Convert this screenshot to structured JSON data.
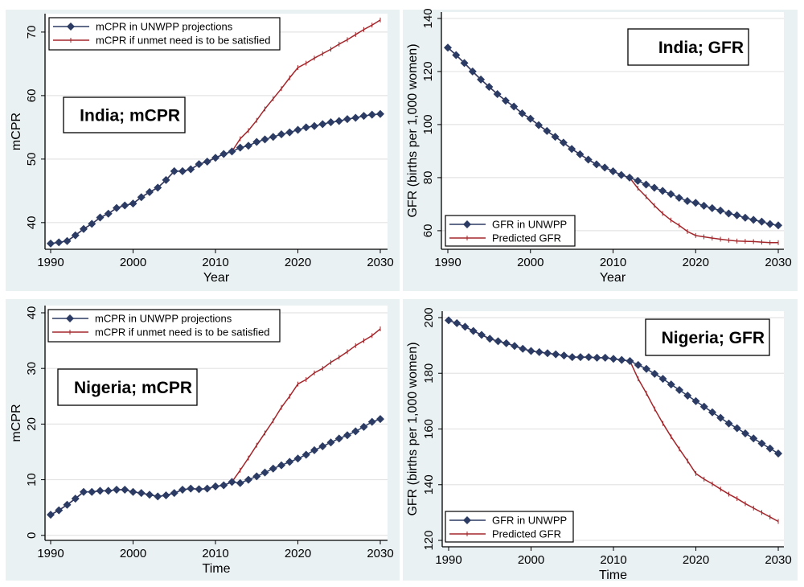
{
  "colors": {
    "panel_bg": "#e9f1f3",
    "series_unwpp": "#2b3b63",
    "series_predicted": "#a3262b",
    "grid": "#e4e4e4"
  },
  "chart_data": [
    {
      "type": "line",
      "title": "India; mCPR",
      "xlabel": "Year",
      "ylabel": "mCPR",
      "xlim": [
        1990,
        2030
      ],
      "ylim": [
        35.8,
        72.9
      ],
      "xticks": [
        "1990",
        "2000",
        "2010",
        "2020",
        "2030"
      ],
      "yticks": [
        "40",
        "50",
        "60",
        "70"
      ],
      "grid": true,
      "legend": "top-left",
      "x_start": 1990,
      "series": [
        {
          "name": "mCPR in UNWPP projections",
          "marker": "diamond",
          "values": [
            36.7,
            36.9,
            37.1,
            38.0,
            39.0,
            39.8,
            40.8,
            41.4,
            42.3,
            42.7,
            43.0,
            44.0,
            44.8,
            45.5,
            46.7,
            48.1,
            48.1,
            48.4,
            49.2,
            49.6,
            50.2,
            50.8,
            51.2,
            51.8,
            52.1,
            52.7,
            53.1,
            53.5,
            53.9,
            54.2,
            54.6,
            55.0,
            55.2,
            55.5,
            55.8,
            56.0,
            56.3,
            56.5,
            56.8,
            57.0,
            57.1
          ]
        },
        {
          "name": "mCPR if unmet need is to be satisfied",
          "marker": "plus",
          "values": [
            36.7,
            36.9,
            37.1,
            38.0,
            39.0,
            39.8,
            40.8,
            41.4,
            42.3,
            42.7,
            43.0,
            44.0,
            44.8,
            45.5,
            46.7,
            48.1,
            48.1,
            48.4,
            49.2,
            49.6,
            50.2,
            50.8,
            51.2,
            53.2,
            54.5,
            56.1,
            57.9,
            59.5,
            61.1,
            62.8,
            64.4,
            65.1,
            65.9,
            66.6,
            67.3,
            68.1,
            68.8,
            69.6,
            70.4,
            71.1,
            71.9
          ]
        }
      ]
    },
    {
      "type": "line",
      "title": "India; GFR",
      "xlabel": "Year",
      "ylabel": "GFR (births per 1,000 women)",
      "xlim": [
        1990,
        2030
      ],
      "ylim": [
        53,
        142.4
      ],
      "xticks": [
        "1990",
        "2000",
        "2010",
        "2020",
        "2030"
      ],
      "yticks": [
        "60",
        "80",
        "100",
        "120",
        "140"
      ],
      "grid": true,
      "legend": "bottom-left",
      "x_start": 1990,
      "series": [
        {
          "name": "GFR in UNWPP",
          "marker": "diamond",
          "values": [
            129.0,
            126.2,
            123.2,
            120.0,
            117.0,
            114.2,
            111.5,
            109.0,
            106.8,
            104.2,
            102.2,
            99.8,
            97.6,
            95.4,
            93.2,
            90.8,
            88.8,
            86.8,
            85.0,
            83.8,
            82.4,
            81.0,
            80.0,
            78.8,
            77.4,
            76.2,
            75.0,
            73.8,
            72.4,
            71.2,
            70.5,
            69.4,
            68.5,
            67.6,
            66.5,
            65.8,
            64.9,
            64.1,
            63.4,
            62.5,
            62.0
          ]
        },
        {
          "name": "Predicted GFR",
          "marker": "plus",
          "values": [
            129.0,
            126.2,
            123.2,
            120.0,
            117.0,
            114.2,
            111.5,
            109.0,
            106.8,
            104.2,
            102.2,
            99.8,
            97.6,
            95.4,
            93.2,
            90.8,
            88.8,
            86.8,
            85.0,
            83.8,
            82.4,
            81.0,
            80.0,
            76.0,
            72.8,
            69.5,
            66.5,
            64.0,
            62.0,
            59.7,
            58.2,
            57.7,
            57.2,
            56.8,
            56.4,
            56.1,
            56.0,
            55.9,
            55.7,
            55.5,
            55.5
          ]
        }
      ]
    },
    {
      "type": "line",
      "title": "Nigeria; mCPR",
      "xlabel": "Time",
      "ylabel": "mCPR",
      "xlim": [
        1990,
        2030
      ],
      "ylim": [
        -0.9,
        41.3
      ],
      "xticks": [
        "1990",
        "2000",
        "2010",
        "2020",
        "2030"
      ],
      "yticks": [
        "0",
        "10",
        "20",
        "30",
        "40"
      ],
      "grid": true,
      "legend": "top-left",
      "x_start": 1990,
      "series": [
        {
          "name": "mCPR in UNWPP projections",
          "marker": "diamond",
          "values": [
            3.7,
            4.5,
            5.5,
            6.6,
            7.8,
            7.8,
            8.0,
            8.0,
            8.2,
            8.2,
            7.8,
            7.6,
            7.3,
            7.0,
            7.2,
            7.6,
            8.2,
            8.4,
            8.3,
            8.4,
            8.8,
            9.0,
            9.6,
            9.4,
            10.0,
            10.6,
            11.3,
            12.0,
            12.6,
            13.2,
            13.8,
            14.5,
            15.3,
            16.0,
            16.7,
            17.4,
            18.0,
            18.7,
            19.5,
            20.4,
            20.9
          ]
        },
        {
          "name": "mCPR if unmet need is to be satisfied",
          "marker": "plus",
          "values": [
            3.7,
            4.5,
            5.5,
            6.6,
            7.8,
            7.8,
            8.0,
            8.0,
            8.2,
            8.2,
            7.8,
            7.6,
            7.3,
            7.0,
            7.2,
            7.6,
            8.2,
            8.4,
            8.3,
            8.4,
            8.8,
            9.0,
            9.6,
            11.7,
            13.9,
            16.2,
            18.4,
            20.6,
            23.0,
            25.0,
            27.2,
            28.0,
            29.2,
            30.0,
            31.1,
            32.0,
            33.0,
            34.1,
            35.0,
            35.9,
            37.1
          ]
        }
      ]
    },
    {
      "type": "line",
      "title": "Nigeria; GFR",
      "xlabel": "Time",
      "ylabel": "GFR (births per 1,000 women)",
      "xlim": [
        1990,
        2030
      ],
      "ylim": [
        117.7,
        202.3
      ],
      "xticks": [
        "1990",
        "2000",
        "2010",
        "2020",
        "2030"
      ],
      "yticks": [
        "120",
        "140",
        "160",
        "180",
        "200"
      ],
      "grid": true,
      "legend": "bottom-left",
      "x_start": 1990,
      "series": [
        {
          "name": "GFR in UNWPP",
          "marker": "diamond",
          "values": [
            199.0,
            198.0,
            196.7,
            195.2,
            193.8,
            192.4,
            191.5,
            190.8,
            189.8,
            188.8,
            188.0,
            187.6,
            187.2,
            186.8,
            186.4,
            185.8,
            185.8,
            185.8,
            185.6,
            185.6,
            185.2,
            184.8,
            184.4,
            183.0,
            181.6,
            179.8,
            178.0,
            176.0,
            174.0,
            172.0,
            170.0,
            168.0,
            166.0,
            164.0,
            162.0,
            160.3,
            158.4,
            156.6,
            154.8,
            153.0,
            151.2
          ]
        },
        {
          "name": "Predicted GFR",
          "marker": "plus",
          "values": [
            199.0,
            198.0,
            196.7,
            195.2,
            193.8,
            192.4,
            191.5,
            190.8,
            189.8,
            188.8,
            188.0,
            187.6,
            187.2,
            186.8,
            186.4,
            185.8,
            185.8,
            185.8,
            185.6,
            185.6,
            185.2,
            184.8,
            184.4,
            178.0,
            172.8,
            167.2,
            162.0,
            157.2,
            152.8,
            148.5,
            144.0,
            142.0,
            140.3,
            138.4,
            136.6,
            135.0,
            133.2,
            131.6,
            130.0,
            128.4,
            126.8
          ]
        }
      ]
    }
  ]
}
